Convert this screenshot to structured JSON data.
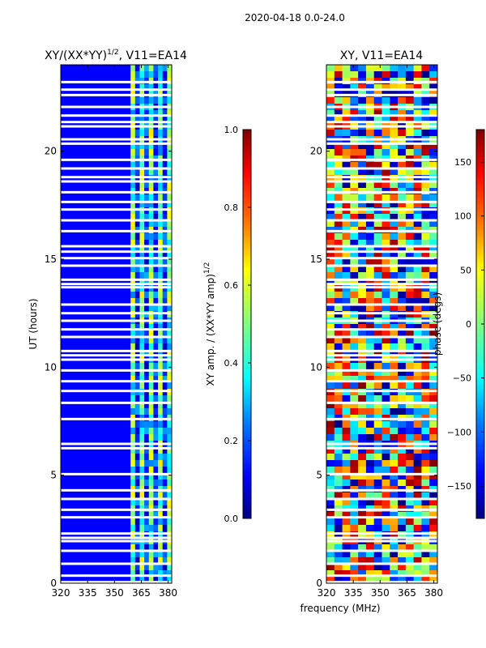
{
  "figure": {
    "suptitle": "2020-04-18 0.0-24.0",
    "xlabel": "frequency (MHz)"
  },
  "colors": {
    "jet": [
      "#00007f",
      "#0000ff",
      "#0080ff",
      "#00ffff",
      "#80ff80",
      "#ffff00",
      "#ff8000",
      "#ff0000",
      "#7f0000"
    ],
    "flag": "#ffffff",
    "gridline": "#e0e0e0"
  },
  "chart_data": [
    {
      "type": "heatmap",
      "title_main": "XY/(XX*YY)",
      "title_sup": "1/2",
      "title_rest": ", V11=EA14",
      "xlabel": "",
      "ylabel": "UT (hours)",
      "xlim": [
        320,
        382
      ],
      "ylim": [
        0,
        24
      ],
      "xticks": [
        320,
        335,
        350,
        365,
        380
      ],
      "yticks": [
        0,
        5,
        10,
        15,
        20
      ],
      "rfi_band_MHz": [
        359,
        382
      ],
      "colorbar": {
        "label_main": "XY amp. / (XX*YY amp)",
        "label_sup": "1/2",
        "range": [
          0.0,
          1.0
        ],
        "ticks": [
          "0.0",
          "0.2",
          "0.4",
          "0.6",
          "0.8",
          "1.0"
        ]
      }
    },
    {
      "type": "heatmap",
      "title_main": "XY, V11=EA14",
      "xlabel": "",
      "ylabel": "",
      "xlim": [
        320,
        382
      ],
      "ylim": [
        0,
        24
      ],
      "xticks": [
        320,
        335,
        350,
        365,
        380
      ],
      "yticks": [
        0,
        5,
        10,
        15,
        20
      ],
      "colorbar": {
        "label_main": "phase (degs)",
        "range": [
          -180,
          180
        ],
        "ticks": [
          "−150",
          "−100",
          "−50",
          "0",
          "50",
          "100",
          "150"
        ]
      }
    }
  ],
  "flagged_ut_hours": [
    0.05,
    0.35,
    0.9,
    1.5,
    1.95,
    2.1,
    2.3,
    3.05,
    3.4,
    3.9,
    4.3,
    5.05,
    6.25,
    6.45,
    7.6,
    8.35,
    8.9,
    9.35,
    9.85,
    10.35,
    10.55,
    10.75,
    11.4,
    11.75,
    12.15,
    12.5,
    12.9,
    13.7,
    13.85,
    14.05,
    14.7,
    15.05,
    15.35,
    15.6,
    16.3,
    16.8,
    17.3,
    17.65,
    18.1,
    18.6,
    18.8,
    19.2,
    19.6,
    20.35,
    20.55,
    21.15,
    21.35,
    21.65,
    22.05,
    22.6,
    22.85,
    23.2
  ]
}
